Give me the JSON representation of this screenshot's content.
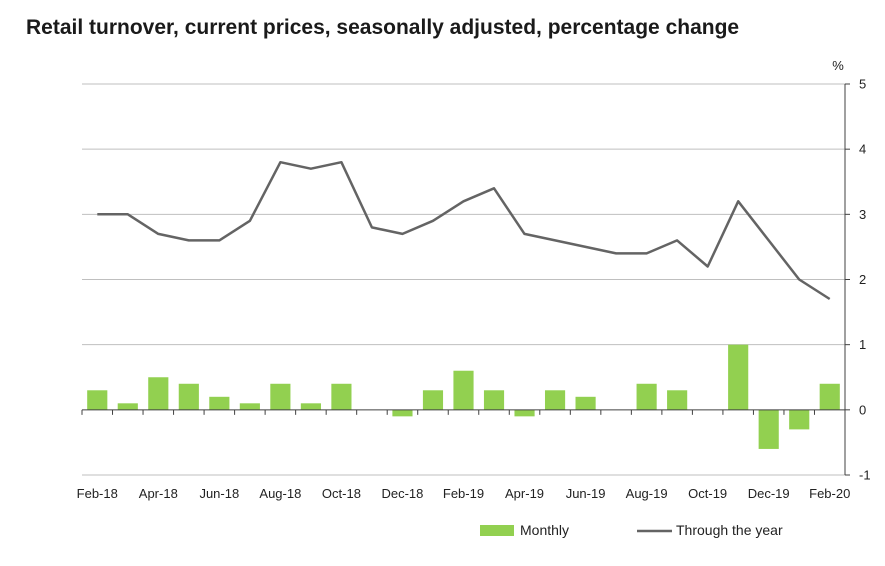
{
  "chart_data": {
    "type": "bar+line",
    "title": "Retail turnover, current prices, seasonally adjusted, percentage change",
    "unit_label": "%",
    "categories": [
      "Feb-18",
      "Mar-18",
      "Apr-18",
      "May-18",
      "Jun-18",
      "Jul-18",
      "Aug-18",
      "Sep-18",
      "Oct-18",
      "Nov-18",
      "Dec-18",
      "Jan-19",
      "Feb-19",
      "Mar-19",
      "Apr-19",
      "May-19",
      "Jun-19",
      "Jul-19",
      "Aug-19",
      "Sep-19",
      "Oct-19",
      "Nov-19",
      "Dec-19",
      "Jan-20",
      "Feb-20"
    ],
    "x_tick_labels": [
      "Feb-18",
      "Apr-18",
      "Jun-18",
      "Aug-18",
      "Oct-18",
      "Dec-18",
      "Feb-19",
      "Apr-19",
      "Jun-19",
      "Aug-19",
      "Oct-19",
      "Dec-19",
      "Feb-20"
    ],
    "series": [
      {
        "name": "Monthly",
        "type": "bar",
        "color": "#92d050",
        "values": [
          0.3,
          0.1,
          0.5,
          0.4,
          0.2,
          0.1,
          0.4,
          0.1,
          0.4,
          0.0,
          -0.1,
          0.3,
          0.6,
          0.3,
          -0.1,
          0.3,
          0.2,
          0.0,
          0.4,
          0.3,
          0.0,
          1.0,
          -0.6,
          -0.3,
          0.4
        ]
      },
      {
        "name": "Through the year",
        "type": "line",
        "color": "#646464",
        "values": [
          3.0,
          3.0,
          2.7,
          2.6,
          2.6,
          2.9,
          3.8,
          3.7,
          3.8,
          2.8,
          2.7,
          2.9,
          3.2,
          3.4,
          2.7,
          2.6,
          2.5,
          2.4,
          2.4,
          2.6,
          2.2,
          3.2,
          2.6,
          2.0,
          1.7
        ]
      }
    ],
    "ylim": [
      -1,
      5
    ],
    "y_ticks": [
      -1,
      0,
      1,
      2,
      3,
      4,
      5
    ],
    "y_axis_side": "right",
    "grid": true,
    "legend_position": "bottom-right"
  }
}
